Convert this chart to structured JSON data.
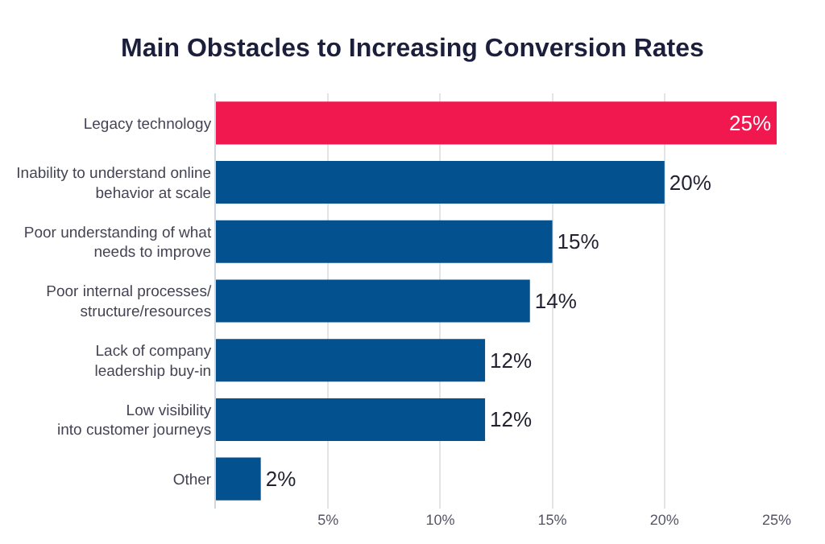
{
  "chart_data": {
    "type": "bar",
    "orientation": "horizontal",
    "title": "Main Obstacles to Increasing Conversion Rates",
    "categories": [
      "Legacy technology",
      "Inability to understand online\nbehavior at scale",
      "Poor understanding of what\nneeds to improve",
      "Poor internal processes/\nstructure/resources",
      "Lack of company\nleadership buy-in",
      "Low visibility\ninto customer journeys",
      "Other"
    ],
    "values": [
      25,
      20,
      15,
      14,
      12,
      12,
      2
    ],
    "colors": [
      "#f0184f",
      "#03518f",
      "#03518f",
      "#03518f",
      "#03518f",
      "#03518f",
      "#03518f"
    ],
    "value_labels": [
      "25%",
      "20%",
      "15%",
      "14%",
      "12%",
      "12%",
      "2%"
    ],
    "xlim": [
      0,
      25
    ],
    "xticks": [
      {
        "value": 5,
        "label": "5%"
      },
      {
        "value": 10,
        "label": "10%"
      },
      {
        "value": 15,
        "label": "15%"
      },
      {
        "value": 20,
        "label": "20%"
      },
      {
        "value": 25,
        "label": "25%"
      }
    ],
    "grid": "x"
  }
}
